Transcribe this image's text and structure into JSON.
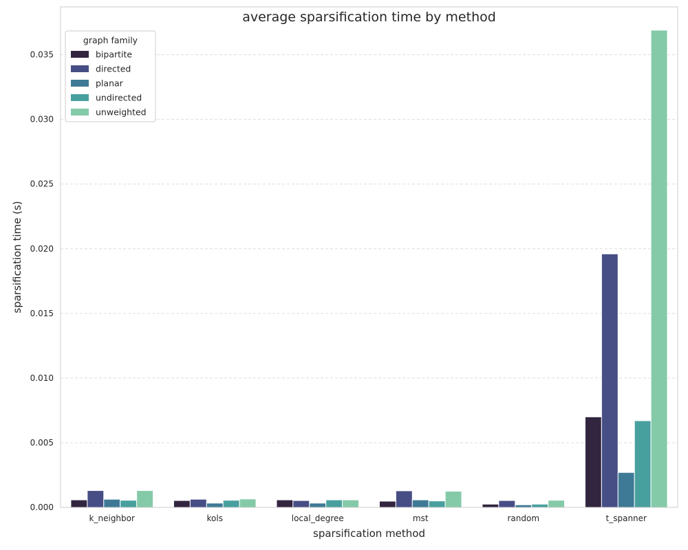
{
  "chart_data": {
    "type": "bar",
    "title": "average sparsification time by method",
    "xlabel": "sparsification method",
    "ylabel": "sparsification time (s)",
    "categories": [
      "k_neighbor",
      "kols",
      "local_degree",
      "mst",
      "random",
      "t_spanner"
    ],
    "ylim": [
      0,
      0.0387
    ],
    "yticks": [
      0.0,
      0.005,
      0.01,
      0.015,
      0.02,
      0.025,
      0.03,
      0.035
    ],
    "ytick_labels": [
      "0.000",
      "0.005",
      "0.010",
      "0.015",
      "0.020",
      "0.025",
      "0.030",
      "0.035"
    ],
    "grid": "horizontal dashed",
    "legend": {
      "title": "graph family",
      "position": "top-left"
    },
    "series": [
      {
        "name": "bipartite",
        "color": "#31253f",
        "values": [
          0.00058,
          0.00053,
          0.00058,
          0.00048,
          0.00025,
          0.007
        ]
      },
      {
        "name": "directed",
        "color": "#474e85",
        "values": [
          0.0013,
          0.00063,
          0.00053,
          0.00128,
          0.00053,
          0.0196
        ]
      },
      {
        "name": "planar",
        "color": "#3e7a95",
        "values": [
          0.00063,
          0.00033,
          0.00033,
          0.00058,
          0.0002,
          0.0027
        ]
      },
      {
        "name": "undirected",
        "color": "#48a09e",
        "values": [
          0.00055,
          0.00055,
          0.00058,
          0.0005,
          0.00025,
          0.0067
        ]
      },
      {
        "name": "unweighted",
        "color": "#84caa9",
        "values": [
          0.0013,
          0.00065,
          0.00058,
          0.00125,
          0.00055,
          0.0369
        ]
      }
    ]
  }
}
